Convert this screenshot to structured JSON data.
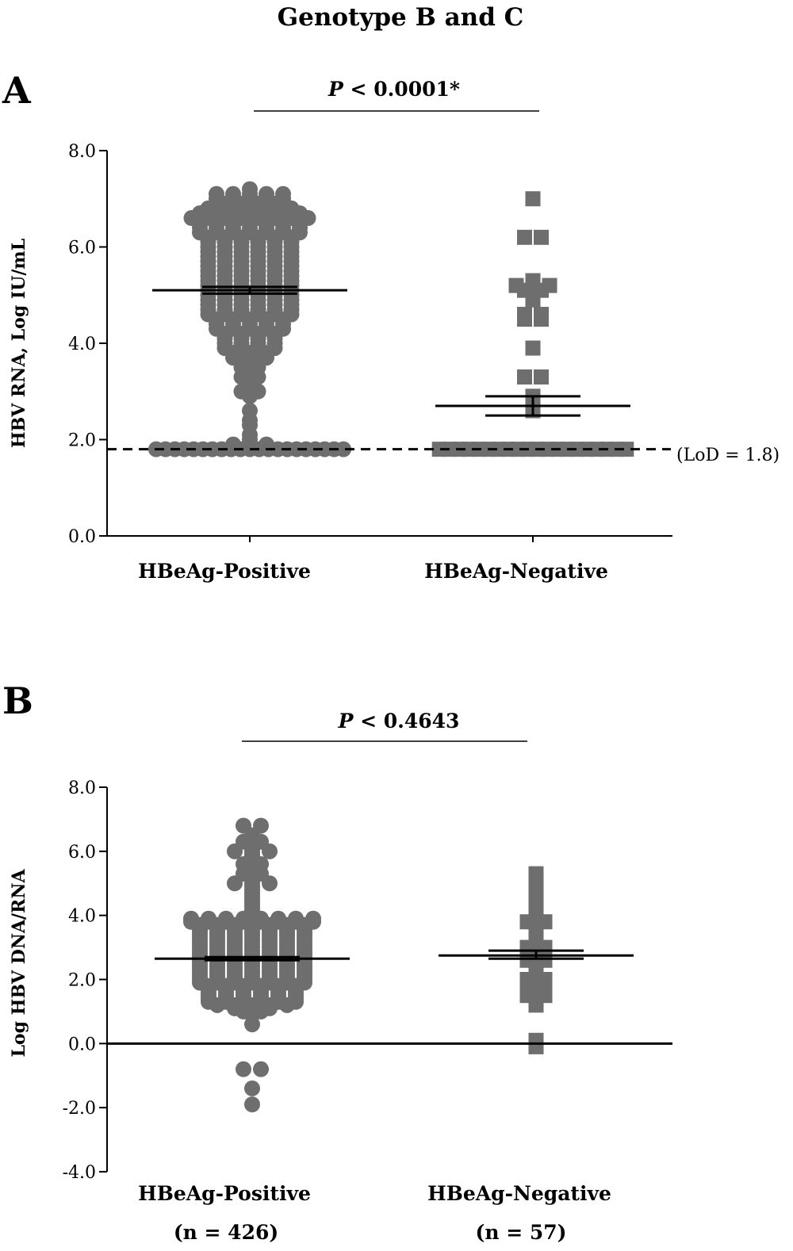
{
  "figure": {
    "title": "Genotype B and C",
    "colors": {
      "points": "#6e6e6e",
      "lines": "#000000"
    }
  },
  "chart_data": [
    {
      "type": "scatter",
      "panel_label": "A",
      "ylabel": "HBV RNA, Log IU/mL",
      "ylim": [
        0,
        8
      ],
      "yticks": [
        0,
        2,
        4,
        6,
        8
      ],
      "ytick_labels": [
        "0.0",
        "2.0",
        "4.0",
        "6.0",
        "8.0"
      ],
      "categories": [
        "HBeAg-Positive",
        "HBeAg-Negative"
      ],
      "category_sublabels": [
        "",
        ""
      ],
      "significance": {
        "text_prefix": "P",
        "text_suffix": " < 0.0001*"
      },
      "reference_line": {
        "y": 1.8,
        "style": "dashed",
        "label": "(LoD = 1.8)"
      },
      "series": [
        {
          "category": "HBeAg-Positive",
          "marker": "circle",
          "mean": 5.1,
          "sem": [
            5.03,
            5.17
          ],
          "values": [
            7.0,
            7.0,
            7.0,
            7.0,
            7.1,
            7.1,
            7.1,
            7.1,
            7.1,
            7.0,
            7.2,
            6.9,
            6.9,
            6.9,
            6.9,
            6.8,
            6.8,
            6.8,
            6.8,
            6.8,
            6.8,
            6.7,
            6.7,
            6.7,
            6.7,
            6.7,
            6.7,
            6.7,
            6.6,
            6.6,
            6.6,
            6.6,
            6.6,
            6.6,
            6.6,
            6.6,
            6.5,
            6.5,
            6.5,
            6.5,
            6.5,
            6.5,
            6.5,
            6.4,
            6.4,
            6.4,
            6.4,
            6.4,
            6.4,
            6.4,
            6.3,
            6.3,
            6.3,
            6.3,
            6.3,
            6.3,
            6.3,
            6.2,
            6.2,
            6.2,
            6.2,
            6.2,
            6.2,
            6.1,
            6.1,
            6.1,
            6.1,
            6.1,
            6.1,
            6.0,
            6.0,
            6.0,
            6.0,
            6.0,
            6.0,
            5.9,
            5.9,
            5.9,
            5.9,
            5.9,
            5.9,
            5.8,
            5.8,
            5.8,
            5.8,
            5.8,
            5.8,
            5.7,
            5.7,
            5.7,
            5.7,
            5.7,
            5.7,
            5.6,
            5.6,
            5.6,
            5.6,
            5.6,
            5.6,
            5.5,
            5.5,
            5.5,
            5.5,
            5.5,
            5.5,
            5.4,
            5.4,
            5.4,
            5.4,
            5.4,
            5.4,
            5.3,
            5.3,
            5.3,
            5.3,
            5.3,
            5.3,
            5.2,
            5.2,
            5.2,
            5.2,
            5.2,
            5.2,
            5.1,
            5.1,
            5.1,
            5.1,
            5.1,
            5.1,
            5.0,
            5.0,
            5.0,
            5.0,
            5.0,
            5.0,
            4.9,
            4.9,
            4.9,
            4.9,
            4.9,
            4.9,
            4.8,
            4.8,
            4.8,
            4.8,
            4.8,
            4.8,
            4.7,
            4.7,
            4.7,
            4.7,
            4.7,
            4.7,
            4.6,
            4.6,
            4.6,
            4.6,
            4.6,
            4.6,
            4.5,
            4.5,
            4.5,
            4.5,
            4.5,
            4.4,
            4.4,
            4.4,
            4.4,
            4.4,
            4.3,
            4.3,
            4.3,
            4.3,
            4.3,
            4.2,
            4.2,
            4.2,
            4.2,
            4.1,
            4.1,
            4.1,
            4.1,
            4.0,
            4.0,
            4.0,
            4.0,
            3.9,
            3.9,
            3.9,
            3.9,
            3.8,
            3.8,
            3.8,
            3.7,
            3.7,
            3.7,
            3.6,
            3.6,
            3.5,
            3.5,
            3.4,
            3.3,
            3.3,
            3.2,
            3.1,
            3.0,
            3.0,
            2.9,
            2.6,
            2.4,
            2.3,
            2.1,
            2.0,
            1.9,
            1.9,
            1.9,
            1.8,
            1.8,
            1.8,
            1.8,
            1.8,
            1.8,
            1.8,
            1.8,
            1.8,
            1.8,
            1.8,
            1.8,
            1.8,
            1.8,
            1.8,
            1.8,
            1.8,
            1.8,
            1.8,
            1.8,
            1.8
          ]
        },
        {
          "category": "HBeAg-Negative",
          "marker": "square",
          "mean": 2.7,
          "sem": [
            2.5,
            2.9
          ],
          "values": [
            7.0,
            6.2,
            6.2,
            5.3,
            5.2,
            5.2,
            5.2,
            5.1,
            5.1,
            4.9,
            4.6,
            4.6,
            4.5,
            4.5,
            3.9,
            3.3,
            3.3,
            2.9,
            2.8,
            2.6,
            1.8,
            1.8,
            1.8,
            1.8,
            1.8,
            1.8,
            1.8,
            1.8,
            1.8,
            1.8,
            1.8,
            1.8,
            1.8,
            1.8,
            1.8,
            1.8,
            1.8,
            1.8,
            1.8,
            1.8
          ]
        }
      ]
    },
    {
      "type": "scatter",
      "panel_label": "B",
      "ylabel": "Log HBV DNA/RNA",
      "ylim": [
        -4,
        8
      ],
      "yticks": [
        -4,
        -2,
        0,
        2,
        4,
        6,
        8
      ],
      "ytick_labels": [
        "-4.0",
        "-2.0",
        "0.0",
        "2.0",
        "4.0",
        "6.0",
        "8.0"
      ],
      "categories": [
        "HBeAg-Positive",
        "HBeAg-Negative"
      ],
      "category_sublabels": [
        "(n = 426)",
        "(n = 57)"
      ],
      "significance": {
        "text_prefix": "P",
        "text_suffix": " < 0.4643"
      },
      "reference_line": {
        "y": 0,
        "style": "solid",
        "label": ""
      },
      "series": [
        {
          "category": "HBeAg-Positive",
          "marker": "circle",
          "mean": 2.65,
          "sem": [
            2.6,
            2.7
          ],
          "values": [
            6.8,
            6.8,
            6.5,
            6.4,
            6.3,
            6.3,
            6.2,
            6.0,
            6.0,
            6.0,
            5.9,
            5.8,
            5.6,
            5.6,
            5.5,
            5.4,
            5.3,
            5.3,
            5.2,
            5.1,
            5.0,
            5.0,
            5.0,
            4.9,
            4.8,
            4.7,
            4.6,
            4.5,
            4.4,
            4.3,
            4.2,
            4.1,
            4.0,
            3.9,
            3.9,
            3.9,
            3.9,
            3.9,
            3.9,
            3.9,
            3.9,
            3.8,
            3.8,
            3.8,
            3.8,
            3.8,
            3.8,
            3.8,
            3.8,
            3.7,
            3.7,
            3.7,
            3.7,
            3.7,
            3.7,
            3.7,
            3.6,
            3.6,
            3.6,
            3.6,
            3.6,
            3.6,
            3.6,
            3.5,
            3.5,
            3.5,
            3.5,
            3.5,
            3.5,
            3.5,
            3.4,
            3.4,
            3.4,
            3.4,
            3.4,
            3.4,
            3.4,
            3.3,
            3.3,
            3.3,
            3.3,
            3.3,
            3.3,
            3.3,
            3.2,
            3.2,
            3.2,
            3.2,
            3.2,
            3.2,
            3.2,
            3.1,
            3.1,
            3.1,
            3.1,
            3.1,
            3.1,
            3.1,
            3.0,
            3.0,
            3.0,
            3.0,
            3.0,
            3.0,
            3.0,
            2.9,
            2.9,
            2.9,
            2.9,
            2.9,
            2.9,
            2.9,
            2.8,
            2.8,
            2.8,
            2.8,
            2.8,
            2.8,
            2.8,
            2.7,
            2.7,
            2.7,
            2.7,
            2.7,
            2.7,
            2.7,
            2.6,
            2.6,
            2.6,
            2.6,
            2.6,
            2.6,
            2.6,
            2.5,
            2.5,
            2.5,
            2.5,
            2.5,
            2.5,
            2.5,
            2.4,
            2.4,
            2.4,
            2.4,
            2.4,
            2.4,
            2.4,
            2.3,
            2.3,
            2.3,
            2.3,
            2.3,
            2.3,
            2.3,
            2.2,
            2.2,
            2.2,
            2.2,
            2.2,
            2.2,
            2.2,
            2.1,
            2.1,
            2.1,
            2.1,
            2.1,
            2.1,
            2.1,
            2.0,
            2.0,
            2.0,
            2.0,
            2.0,
            2.0,
            2.0,
            1.9,
            1.9,
            1.9,
            1.9,
            1.9,
            1.9,
            1.9,
            1.8,
            1.8,
            1.8,
            1.8,
            1.8,
            1.8,
            1.7,
            1.7,
            1.7,
            1.7,
            1.7,
            1.7,
            1.6,
            1.6,
            1.6,
            1.6,
            1.6,
            1.6,
            1.5,
            1.5,
            1.5,
            1.5,
            1.5,
            1.5,
            1.4,
            1.4,
            1.4,
            1.4,
            1.4,
            1.4,
            1.3,
            1.3,
            1.3,
            1.3,
            1.3,
            1.3,
            1.2,
            1.2,
            1.2,
            1.2,
            1.2,
            1.1,
            1.1,
            1.1,
            1.0,
            1.0,
            0.9,
            0.6,
            -0.8,
            -0.8,
            -1.4,
            -1.9
          ]
        },
        {
          "category": "HBeAg-Negative",
          "marker": "square",
          "mean": 2.75,
          "sem": [
            2.65,
            2.9
          ],
          "values": [
            5.3,
            5.0,
            4.9,
            4.8,
            4.6,
            4.5,
            4.3,
            4.1,
            3.8,
            3.8,
            3.7,
            3.6,
            3.5,
            3.4,
            3.3,
            3.2,
            3.1,
            3.0,
            3.0,
            2.9,
            2.8,
            2.7,
            2.6,
            2.6,
            2.5,
            2.4,
            2.3,
            2.2,
            2.1,
            2.0,
            2.0,
            1.9,
            1.8,
            1.8,
            1.7,
            1.6,
            1.6,
            1.5,
            1.5,
            1.4,
            1.3,
            1.2,
            0.1,
            0.0,
            -0.1
          ]
        }
      ]
    }
  ]
}
